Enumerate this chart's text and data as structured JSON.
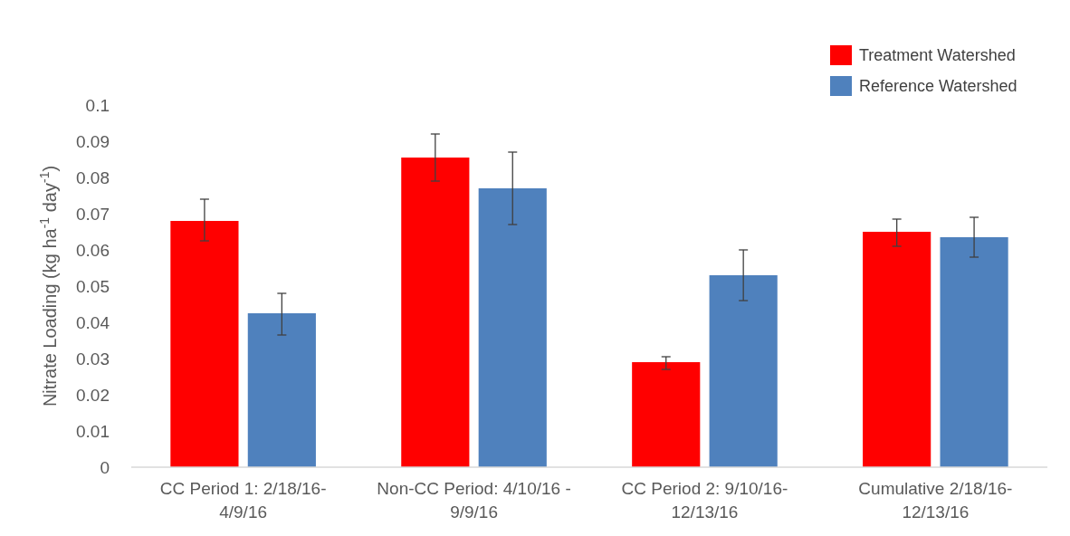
{
  "chart_data": {
    "type": "bar",
    "ylabel": "Nitrate  Loading  (kg ha$^{-1}$ day$^{-1}$)",
    "categories": [
      "CC Period 1:  2/18/16-4/9/16",
      "Non-CC Period:  4/10/16 - 9/9/16",
      "CC Period 2:  9/10/16-12/13/16",
      "Cumulative 2/18/16-12/13/16"
    ],
    "series": [
      {
        "name": "Treatment Watershed",
        "color": "#ff0000",
        "values": [
          0.068,
          0.0855,
          0.029,
          0.065
        ],
        "errors": [
          [
            0.0625,
            0.074
          ],
          [
            0.079,
            0.092
          ],
          [
            0.027,
            0.0305
          ],
          [
            0.061,
            0.0685
          ]
        ]
      },
      {
        "name": "Reference Watershed",
        "color": "#4f81bd",
        "values": [
          0.0425,
          0.077,
          0.053,
          0.0635
        ],
        "errors": [
          [
            0.0365,
            0.048
          ],
          [
            0.067,
            0.087
          ],
          [
            0.046,
            0.06
          ],
          [
            0.058,
            0.069
          ]
        ]
      }
    ],
    "ylim": [
      0,
      0.1
    ],
    "yticks": [
      0,
      0.01,
      0.02,
      0.03,
      0.04,
      0.05,
      0.06,
      0.07,
      0.08,
      0.09,
      0.1
    ],
    "legend": "top right"
  }
}
